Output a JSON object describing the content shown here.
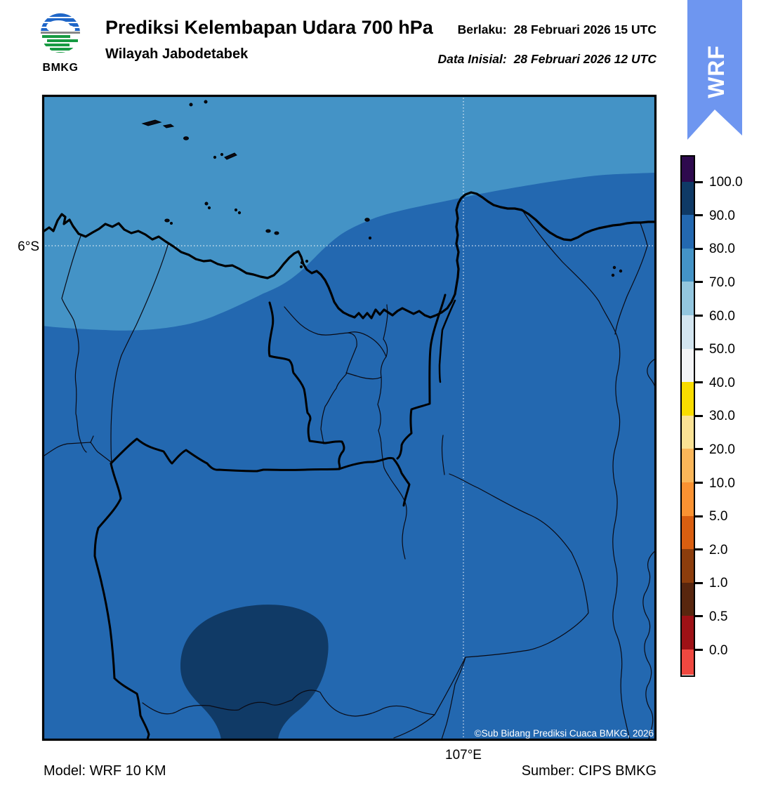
{
  "header": {
    "logo_text": "BMKG",
    "title": "Prediksi Kelembapan Udara 700 hPa",
    "subtitle": "Wilayah Jabodetabek",
    "berlaku_label": "Berlaku:",
    "berlaku_value": "28 Februari 2026 15 UTC",
    "inisial_label": "Data Inisial:",
    "inisial_value": "28 Februari 2026 12 UTC",
    "ribbon_label": "WRF",
    "ribbon_color": "#6E96F0"
  },
  "map": {
    "lat_label": "6°S",
    "lon_label": "107°E",
    "copyright": "©Sub Bidang Prediksi Cuaca BMKG, 2026",
    "fill_colors": {
      "humidity_70_80": "#4493C6",
      "humidity_80_90": "#2368B0",
      "humidity_90_100": "#103A66"
    },
    "regions": [
      {
        "area": "northern sea band and northwest lobe",
        "humidity_range": "70–80"
      },
      {
        "area": "main land and coastal waters",
        "humidity_range": "80–90"
      },
      {
        "area": "south-central funnel-shaped core",
        "humidity_range": "90–100"
      }
    ]
  },
  "colorbar": {
    "tick_labels": [
      "100.0",
      "90.0",
      "80.0",
      "70.0",
      "60.0",
      "50.0",
      "40.0",
      "30.0",
      "20.0",
      "10.0",
      "5.0",
      "2.0",
      "1.0",
      "0.5",
      "0.0"
    ],
    "segment_colors": [
      "#2E0A4E",
      "#0F3A66",
      "#2368B0",
      "#4493C6",
      "#93C6DF",
      "#D3E5F0",
      "#F4F5F7",
      "#F9DC00",
      "#FBE294",
      "#FBB659",
      "#FB9232",
      "#D95E10",
      "#8C3D0C",
      "#58260E",
      "#9E1116",
      "#EF4840"
    ]
  },
  "footer": {
    "model": "Model: WRF 10 KM",
    "source": "Sumber: CIPS BMKG"
  }
}
